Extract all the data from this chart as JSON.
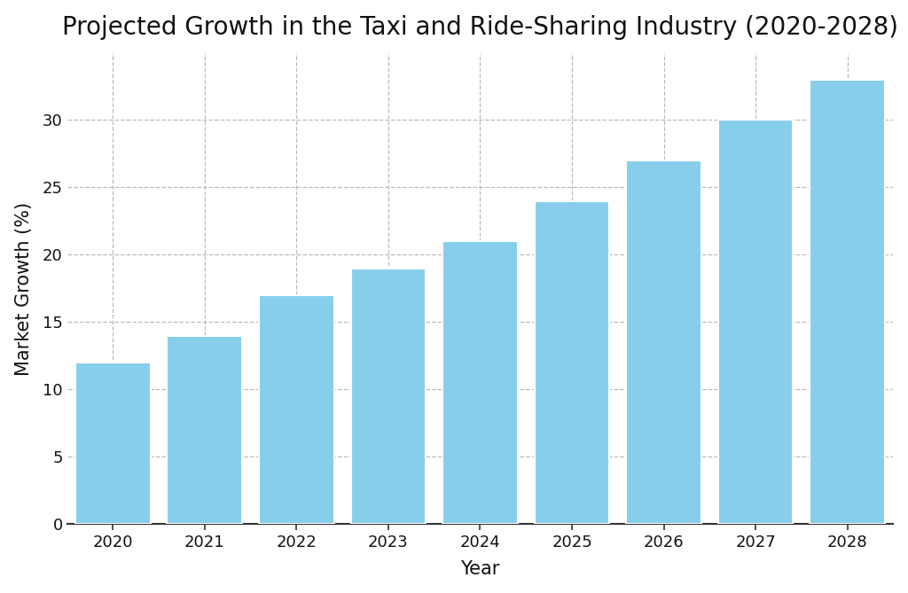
{
  "title": "Projected Growth in the Taxi and Ride-Sharing Industry (2020-2028)",
  "xlabel": "Year",
  "ylabel": "Market Growth (%)",
  "years": [
    2020,
    2021,
    2022,
    2023,
    2024,
    2025,
    2026,
    2027,
    2028
  ],
  "values": [
    12,
    14,
    17,
    19,
    21,
    24,
    27,
    30,
    33
  ],
  "bar_color": "#87CEEB",
  "bar_edgecolor": "#ffffff",
  "background_color": "#ffffff",
  "ylim": [
    0,
    35
  ],
  "yticks": [
    0,
    5,
    10,
    15,
    20,
    25,
    30
  ],
  "grid_color": "#bbbbbb",
  "grid_linestyle": "--",
  "title_fontsize": 20,
  "label_fontsize": 15,
  "tick_fontsize": 13,
  "bar_width": 0.82
}
